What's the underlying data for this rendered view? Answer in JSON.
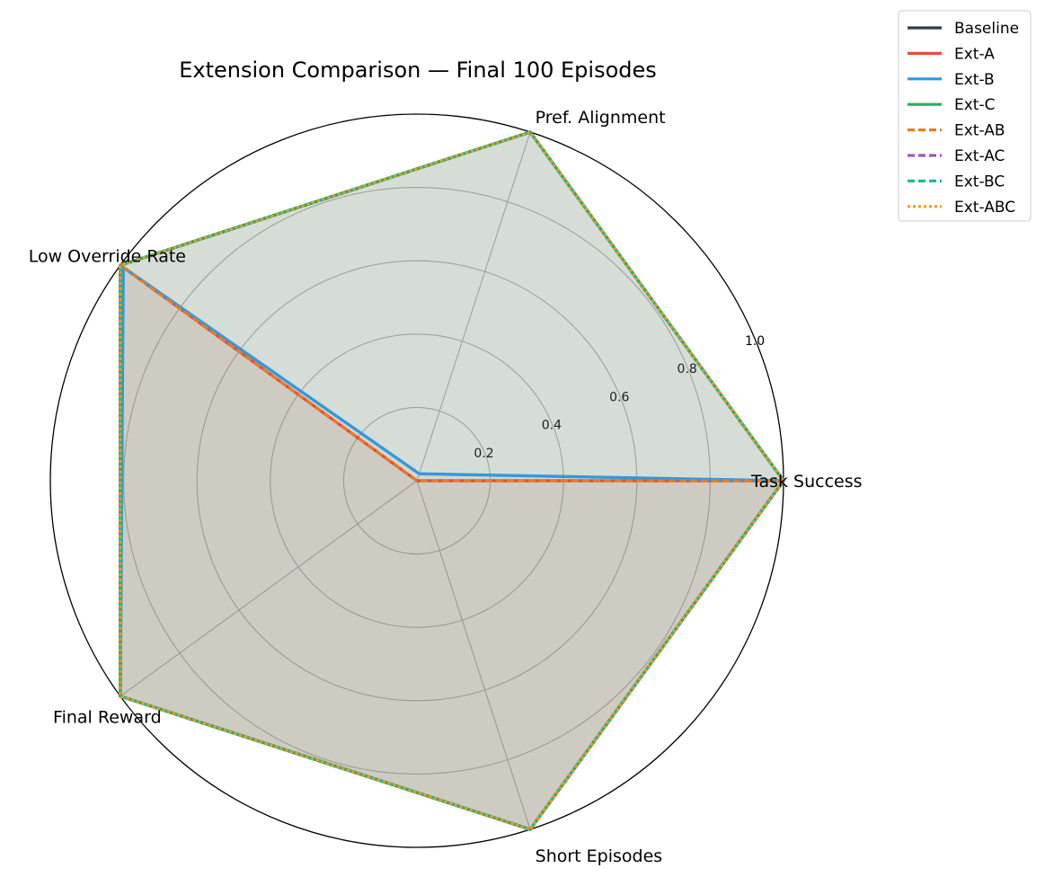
{
  "chart_data": {
    "type": "radar",
    "title": "Extension Comparison — Final 100 Episodes",
    "axes": [
      "Task Success",
      "Pref. Alignment",
      "Low Override Rate",
      "Final Reward",
      "Short Episodes"
    ],
    "rlim": [
      0,
      1.0
    ],
    "rticks": [
      0.2,
      0.4,
      0.6,
      0.8,
      1.0
    ],
    "rtick_labels": [
      "0.2",
      "0.4",
      "0.6",
      "0.8",
      "1.0"
    ],
    "grid": true,
    "legend_position": "top-right",
    "series": [
      {
        "name": "Baseline",
        "values": [
          1.0,
          1.0,
          1.0,
          1.0,
          1.0
        ],
        "color": "#2c3e50",
        "dash": "solid"
      },
      {
        "name": "Ext-A",
        "values": [
          1.0,
          0.0,
          1.0,
          1.0,
          1.0
        ],
        "color": "#e74c3c",
        "dash": "solid"
      },
      {
        "name": "Ext-B",
        "values": [
          1.0,
          0.02,
          0.99,
          1.0,
          1.0
        ],
        "color": "#3498db",
        "dash": "solid"
      },
      {
        "name": "Ext-C",
        "values": [
          1.0,
          1.0,
          1.0,
          1.0,
          1.0
        ],
        "color": "#27ae60",
        "dash": "solid"
      },
      {
        "name": "Ext-AB",
        "values": [
          1.0,
          0.0,
          1.0,
          1.0,
          1.0
        ],
        "color": "#e67e22",
        "dash": "dashed"
      },
      {
        "name": "Ext-AC",
        "values": [
          1.0,
          1.0,
          1.0,
          1.0,
          1.0
        ],
        "color": "#9b59b6",
        "dash": "dashed"
      },
      {
        "name": "Ext-BC",
        "values": [
          1.0,
          1.0,
          1.0,
          1.0,
          1.0
        ],
        "color": "#1abc9c",
        "dash": "dashed"
      },
      {
        "name": "Ext-ABC",
        "values": [
          1.0,
          1.0,
          1.0,
          1.0,
          1.0
        ],
        "color": "#f39c12",
        "dash": "dotted"
      }
    ]
  }
}
